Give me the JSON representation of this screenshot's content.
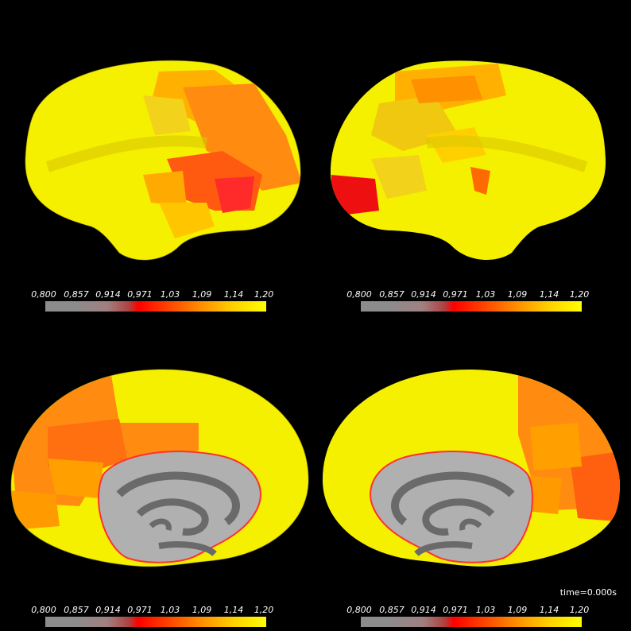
{
  "colorbar": {
    "ticks": [
      "0,800",
      "0,857",
      "0,914",
      "0,971",
      "1,03",
      "1,09",
      "1,14",
      "1,20"
    ],
    "colors": {
      "low": "#8c8c8c",
      "mid": "#ff0000",
      "high": "#ffff00"
    }
  },
  "time_label": "time=0.000s",
  "views": [
    "lateral-left",
    "lateral-right",
    "medial-left",
    "medial-right"
  ]
}
